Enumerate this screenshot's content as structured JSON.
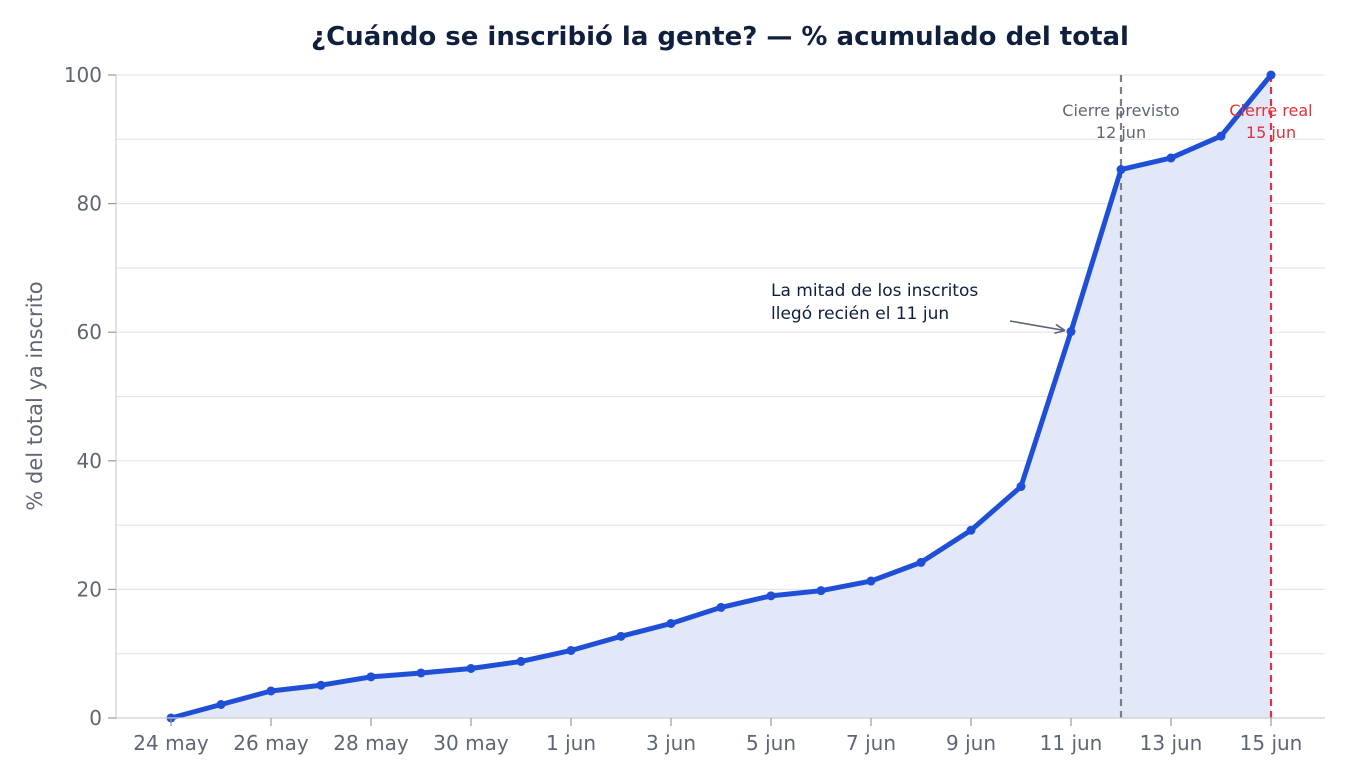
{
  "chart_data": {
    "type": "area",
    "title": "¿Cuándo se inscribió la gente? — % acumulado del total",
    "xlabel": "",
    "ylabel": "% del total ya inscrito",
    "ylim": [
      0,
      100
    ],
    "yticks": [
      0,
      20,
      40,
      60,
      80,
      100
    ],
    "xtick_labels": [
      "24 may",
      "26 may",
      "28 may",
      "30 may",
      "1 jun",
      "3 jun",
      "5 jun",
      "7 jun",
      "9 jun",
      "11 jun",
      "13 jun",
      "15 jun"
    ],
    "x": [
      "24 may",
      "25 may",
      "26 may",
      "27 may",
      "28 may",
      "29 may",
      "30 may",
      "31 may",
      "1 jun",
      "2 jun",
      "3 jun",
      "4 jun",
      "5 jun",
      "6 jun",
      "7 jun",
      "8 jun",
      "9 jun",
      "10 jun",
      "11 jun",
      "12 jun",
      "13 jun",
      "14 jun",
      "15 jun"
    ],
    "values": [
      0,
      2.1,
      4.2,
      5.1,
      6.4,
      7.0,
      7.7,
      8.8,
      10.5,
      12.7,
      14.7,
      17.2,
      19.0,
      19.8,
      21.3,
      24.2,
      29.2,
      36.0,
      60.1,
      85.3,
      87.1,
      90.5,
      100
    ],
    "grid": "horizontal",
    "colors": {
      "line": "#1f4fd6",
      "fill": "#e2e8f8",
      "planned_close": "#7a7f8c",
      "actual_close": "#e0323a",
      "title": "#0f1f3d"
    },
    "reference_lines": [
      {
        "x": "12 jun",
        "label_line1": "Cierre previsto",
        "label_line2": "12 jun",
        "kind": "planned"
      },
      {
        "x": "15 jun",
        "label_line1": "Cierre real",
        "label_line2": "15 jun",
        "kind": "actual"
      }
    ],
    "annotation": {
      "x": "11 jun",
      "y": 60.1,
      "line1": "La mitad de los inscritos",
      "line2": "llegó recién el 11 jun"
    }
  }
}
